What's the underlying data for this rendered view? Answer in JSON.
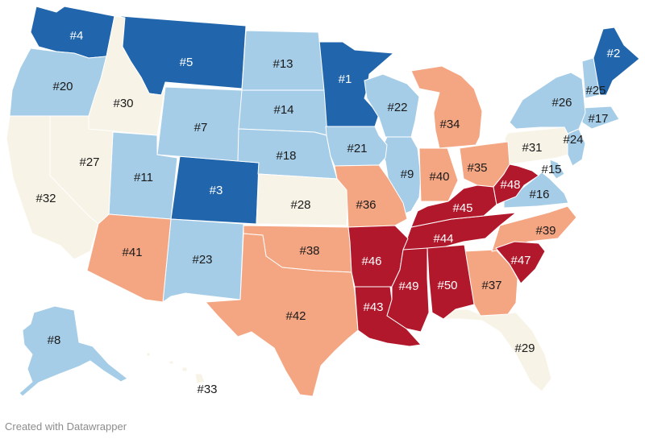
{
  "colors": {
    "dark_blue": "#2166ac",
    "light_blue": "#a6cde7",
    "cream": "#f7f3e6",
    "salmon": "#f4a582",
    "dark_red": "#b2182b"
  },
  "states": [
    {
      "rank": "#1",
      "tier": "dark_blue"
    },
    {
      "rank": "#2",
      "tier": "dark_blue"
    },
    {
      "rank": "#3",
      "tier": "dark_blue"
    },
    {
      "rank": "#4",
      "tier": "dark_blue"
    },
    {
      "rank": "#5",
      "tier": "dark_blue"
    },
    {
      "rank": "#7",
      "tier": "light_blue"
    },
    {
      "rank": "#8",
      "tier": "light_blue"
    },
    {
      "rank": "#9",
      "tier": "light_blue"
    },
    {
      "rank": "#11",
      "tier": "light_blue"
    },
    {
      "rank": "#13",
      "tier": "light_blue"
    },
    {
      "rank": "#14",
      "tier": "light_blue"
    },
    {
      "rank": "#15",
      "tier": "light_blue"
    },
    {
      "rank": "#16",
      "tier": "light_blue"
    },
    {
      "rank": "#17",
      "tier": "light_blue"
    },
    {
      "rank": "#18",
      "tier": "light_blue"
    },
    {
      "rank": "#20",
      "tier": "light_blue"
    },
    {
      "rank": "#21",
      "tier": "light_blue"
    },
    {
      "rank": "#22",
      "tier": "light_blue"
    },
    {
      "rank": "#23",
      "tier": "light_blue"
    },
    {
      "rank": "#24",
      "tier": "light_blue"
    },
    {
      "rank": "#25",
      "tier": "light_blue"
    },
    {
      "rank": "#26",
      "tier": "light_blue"
    },
    {
      "rank": "#27",
      "tier": "cream"
    },
    {
      "rank": "#28",
      "tier": "cream"
    },
    {
      "rank": "#29",
      "tier": "cream"
    },
    {
      "rank": "#30",
      "tier": "cream"
    },
    {
      "rank": "#31",
      "tier": "cream"
    },
    {
      "rank": "#32",
      "tier": "cream"
    },
    {
      "rank": "#33",
      "tier": "cream"
    },
    {
      "rank": "#34",
      "tier": "salmon"
    },
    {
      "rank": "#35",
      "tier": "salmon"
    },
    {
      "rank": "#36",
      "tier": "salmon"
    },
    {
      "rank": "#37",
      "tier": "salmon"
    },
    {
      "rank": "#38",
      "tier": "salmon"
    },
    {
      "rank": "#39",
      "tier": "salmon"
    },
    {
      "rank": "#40",
      "tier": "salmon"
    },
    {
      "rank": "#41",
      "tier": "salmon"
    },
    {
      "rank": "#42",
      "tier": "salmon"
    },
    {
      "rank": "#43",
      "tier": "dark_red"
    },
    {
      "rank": "#44",
      "tier": "dark_red"
    },
    {
      "rank": "#45",
      "tier": "dark_red"
    },
    {
      "rank": "#46",
      "tier": "dark_red"
    },
    {
      "rank": "#47",
      "tier": "dark_red"
    },
    {
      "rank": "#48",
      "tier": "dark_red"
    },
    {
      "rank": "#49",
      "tier": "dark_red"
    },
    {
      "rank": "#50",
      "tier": "dark_red"
    }
  ],
  "credit": "Created with Datawrapper"
}
